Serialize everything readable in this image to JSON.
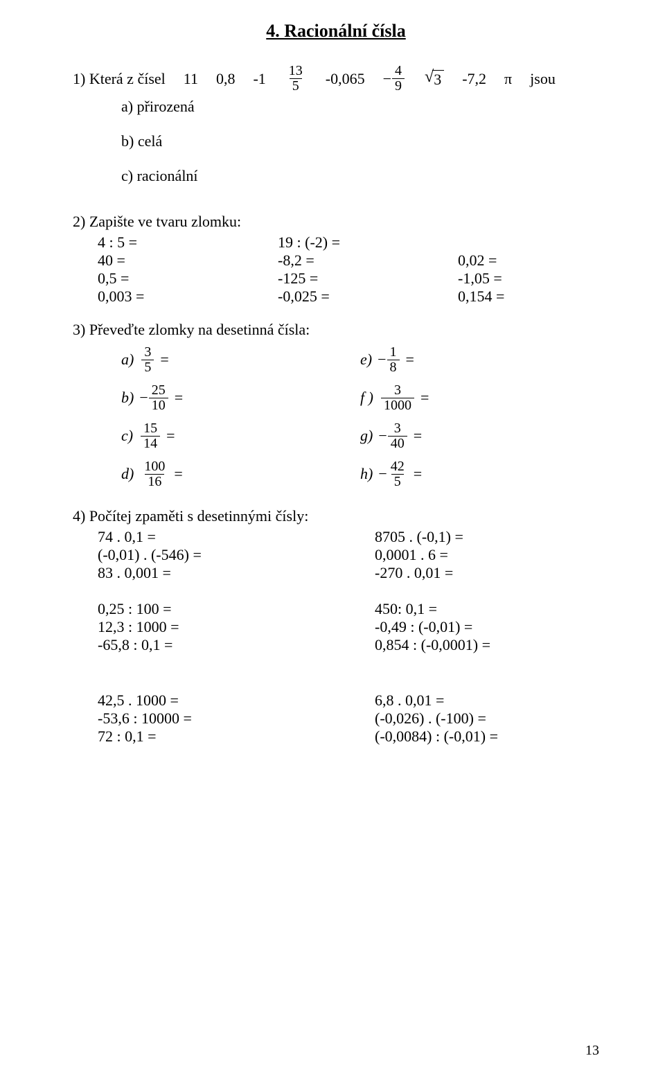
{
  "title": "4. Racionální čísla",
  "q1": {
    "lead": "1) Která z čísel",
    "vals": [
      "11",
      "0,8",
      "-1"
    ],
    "frac1": {
      "num": "13",
      "den": "5"
    },
    "mid1": "-0,065",
    "frac2": {
      "num": "4",
      "den": "9",
      "neg": true
    },
    "sqrt": "3",
    "tail": [
      "-7,2",
      "π",
      "jsou"
    ],
    "subs": {
      "a": "a) přirozená",
      "b": "b) celá",
      "c": "c) racionální"
    }
  },
  "q2": {
    "lead": "2) Zapište ve tvaru zlomku:",
    "rows": [
      {
        "a": "4 : 5 =",
        "b": "19 : (-2) =",
        "c": ""
      },
      {
        "a": " 40 =",
        "b": "-8,2 =",
        "c": "0,02 ="
      },
      {
        "a": "0,5 =",
        "b": "-125 =",
        "c": "-1,05 ="
      },
      {
        "a": "0,003 =",
        "b": "-0,025 =",
        "c": "0,154 ="
      }
    ]
  },
  "q3": {
    "lead": "3) Převeďte zlomky na desetinná čísla:",
    "left": [
      {
        "label": "a)",
        "num": "3",
        "den": "5",
        "neg": false
      },
      {
        "label": "b)",
        "num": "25",
        "den": "10",
        "neg": true
      },
      {
        "label": "c)",
        "num": "15",
        "den": "14",
        "neg": false
      },
      {
        "label": "d)",
        "num": "100",
        "den": "16",
        "neg": false
      }
    ],
    "right": [
      {
        "label": "e)",
        "num": "1",
        "den": "8",
        "neg": true
      },
      {
        "label": "f )",
        "num": "3",
        "den": "1000",
        "neg": false
      },
      {
        "label": "g)",
        "num": "3",
        "den": "40",
        "neg": true
      },
      {
        "label": "h)",
        "num": "42",
        "den": "5",
        "neg": true
      }
    ]
  },
  "q4": {
    "lead": "4) Počítej zpaměti s desetinnými čísly:",
    "set1": [
      {
        "a": "74 . 0,1 =",
        "b": "8705 . (-0,1) ="
      },
      {
        "a": "(-0,01) . (-546) =",
        "b": "0,0001 . 6 ="
      },
      {
        "a": "83 . 0,001 =",
        "b": "-270 . 0,01 ="
      }
    ],
    "set2": [
      {
        "a": "0,25 : 100 =",
        "b": "450: 0,1 ="
      },
      {
        "a": "12,3 : 1000 =",
        "b": "-0,49 : (-0,01) ="
      },
      {
        "a": "-65,8 : 0,1 =",
        "b": "0,854 : (-0,0001) ="
      }
    ],
    "set3": [
      {
        "a": "42,5 . 1000 =",
        "b": "6,8 . 0,01 ="
      },
      {
        "a": "-53,6 : 10000 =",
        "b": "(-0,026) . (-100) ="
      },
      {
        "a": "72 : 0,1 =",
        "b": "(-0,0084) : (-0,01) ="
      }
    ]
  },
  "pagenum": "13"
}
